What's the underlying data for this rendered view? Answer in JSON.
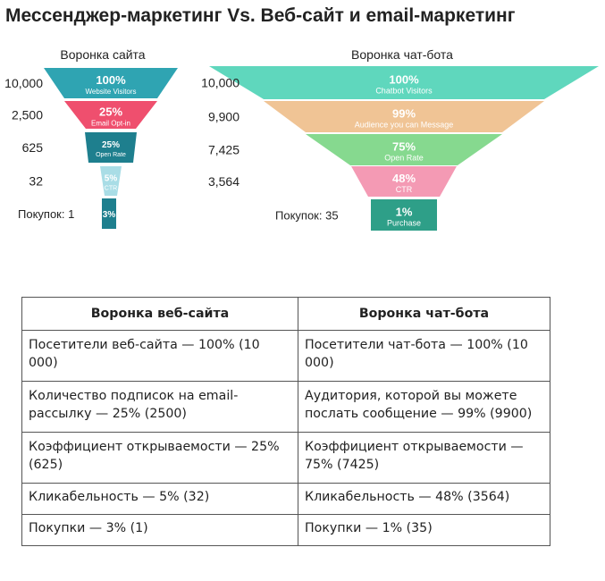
{
  "header": {
    "title": "Мессенджер-маркетинг Vs. Веб-сайт и email-маркетинг"
  },
  "chart_data": [
    {
      "type": "funnel",
      "title": "Воронка сайта",
      "purchase_label": "Покупок: 1",
      "stages": [
        {
          "count": "10,000",
          "percent": "100%",
          "label": "Website Visitors",
          "value": 100,
          "color": "#2fa4b2"
        },
        {
          "count": "2,500",
          "percent": "25%",
          "label": "Email Opt-in",
          "value": 25,
          "color": "#ef4f6e"
        },
        {
          "count": "625",
          "percent": "25%",
          "label": "Open Rate",
          "value": 25,
          "color": "#1e7f8e"
        },
        {
          "count": "32",
          "percent": "5%",
          "label": "CTR",
          "value": 5,
          "color": "#a9dde6"
        },
        {
          "count": "",
          "percent": "3%",
          "label": "",
          "value": 3,
          "color": "#1e7f8e"
        }
      ]
    },
    {
      "type": "funnel",
      "title": "Воронка чат-бота",
      "purchase_label": "Покупок: 35",
      "stages": [
        {
          "count": "10,000",
          "percent": "100%",
          "label": "Chatbot Visitors",
          "value": 100,
          "color": "#5fd7bd"
        },
        {
          "count": "9,900",
          "percent": "99%",
          "label": "Audience you can Message",
          "value": 99,
          "color": "#f0c495"
        },
        {
          "count": "7,425",
          "percent": "75%",
          "label": "Open Rate",
          "value": 75,
          "color": "#86d98f"
        },
        {
          "count": "3,564",
          "percent": "48%",
          "label": "CTR",
          "value": 48,
          "color": "#f49ab4"
        },
        {
          "count": "",
          "percent": "1%",
          "label": "Purchase",
          "value": 1,
          "color": "#2e9f88"
        }
      ]
    }
  ],
  "table": {
    "headers": [
      "Воронка веб-сайта",
      "Воронка чат-бота"
    ],
    "rows": [
      [
        "Посетители веб-сайта — 100% (10 000)",
        "Посетители чат-бота — 100% (10 000)"
      ],
      [
        "Количество подписок на email-рассылку — 25% (2500)",
        "Аудитория, которой вы можете послать сообщение — 99% (9900)"
      ],
      [
        "Коэффициент открываемости — 25% (625)",
        "Коэффициент открываемости — 75% (7425)"
      ],
      [
        "Кликабельность — 5% (32)",
        "Кликабельность — 48% (3564)"
      ],
      [
        "Покупки — 3% (1)",
        "Покупки — 1% (35)"
      ]
    ]
  }
}
